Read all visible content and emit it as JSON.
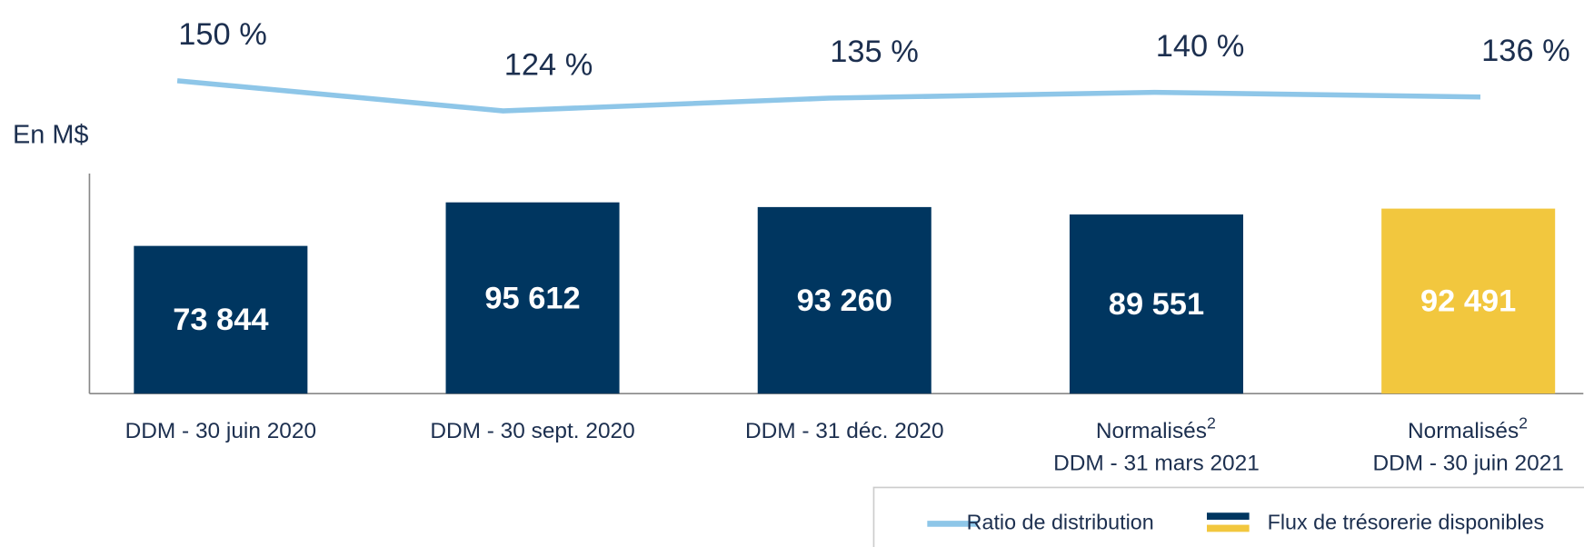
{
  "chart_data": {
    "type": "bar",
    "y_label": "En M$",
    "categories": [
      [
        "DDM - 30 juin 2020"
      ],
      [
        "DDM - 30 sept. 2020"
      ],
      [
        "DDM - 31 déc. 2020"
      ],
      [
        "Normalisés",
        "DDM - 31 mars 2021"
      ],
      [
        "Normalisés",
        "DDM -  30 juin 2021"
      ]
    ],
    "category_notes": [
      null,
      null,
      null,
      "2",
      "2"
    ],
    "ylim": [
      0,
      110000
    ],
    "y2lim": [
      100,
      150
    ],
    "series": [
      {
        "name": "Flux de trésorerie disponibles",
        "type": "bar",
        "colors": [
          "#003660",
          "#003660",
          "#003660",
          "#003660",
          "#f2c73e"
        ],
        "values": [
          73844,
          95612,
          93260,
          89551,
          92491
        ],
        "value_labels": [
          "73 844",
          "95 612",
          "93 260",
          "89 551",
          "92 491"
        ]
      },
      {
        "name": "Ratio de distribution",
        "type": "line",
        "axis": "y2",
        "color": "#8ec6e8",
        "values": [
          150,
          124,
          135,
          140,
          136
        ],
        "value_labels": [
          "150 %",
          "124 %",
          "135 %",
          "140 %",
          "136 %"
        ]
      }
    ],
    "legend": "bottom-right"
  }
}
